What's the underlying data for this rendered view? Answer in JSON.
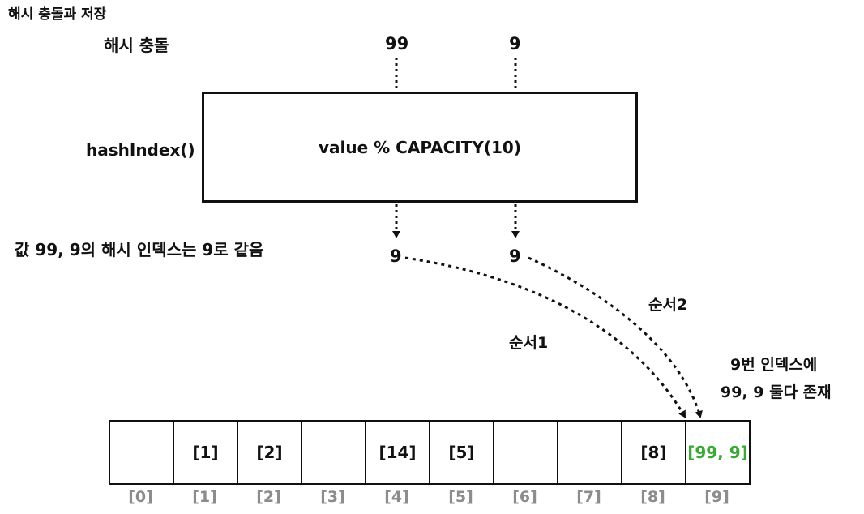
{
  "title": "해시 충돌과 저장",
  "labels": {
    "collision": "해시 충돌",
    "hash_index": "hashIndex()",
    "same_index": "값 99, 9의 해시 인덱스는 9로 같음"
  },
  "inputs": [
    "99",
    "9"
  ],
  "function_box": {
    "expression": "value % CAPACITY(10)"
  },
  "outputs": [
    "9",
    "9"
  ],
  "orders": [
    "순서1",
    "순서2"
  ],
  "note": {
    "line1": "9번 인덱스에",
    "line2": "99, 9 둘다 존재"
  },
  "array": {
    "cells": [
      "",
      "[1]",
      "[2]",
      "",
      "[14]",
      "[5]",
      "",
      "",
      "[8]",
      "[99, 9]"
    ],
    "indices": [
      "[0]",
      "[1]",
      "[2]",
      "[3]",
      "[4]",
      "[5]",
      "[6]",
      "[7]",
      "[8]",
      "[9]"
    ],
    "highlight_index": 9,
    "highlight_color": "#3aaa35",
    "index_label_color": "#8c8c8c"
  }
}
